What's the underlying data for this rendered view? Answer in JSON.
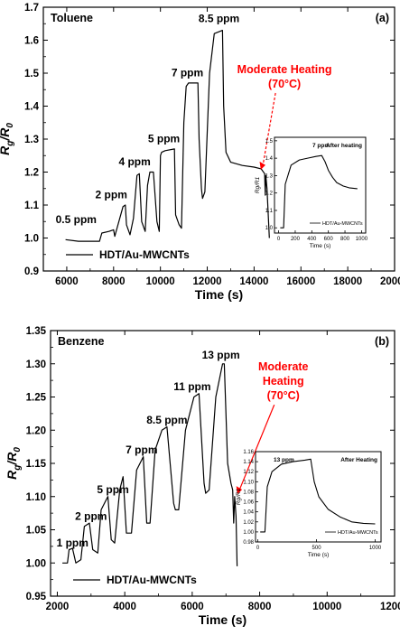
{
  "chart_data": [
    {
      "type": "line",
      "panel_tag": "(a)",
      "gas": "Toluene",
      "xlabel": "Time (s)",
      "ylabel": "Rg/R0",
      "xlim": [
        5000,
        20000
      ],
      "ylim": [
        0.9,
        1.7
      ],
      "xticks": [
        6000,
        8000,
        10000,
        12000,
        14000,
        16000,
        18000,
        20000
      ],
      "yticks": [
        0.9,
        1.0,
        1.1,
        1.2,
        1.3,
        1.4,
        1.5,
        1.6,
        1.7
      ],
      "legend": "HDT/Au-MWCNTs",
      "annotation": {
        "line1": "Moderate Heating",
        "line2": "(70°C)",
        "color": "#ff0000",
        "target": [
          14300,
          1.21
        ]
      },
      "concentration_labels": [
        {
          "text": "0.5 ppm",
          "x": 6400,
          "y": 1.045
        },
        {
          "text": "2 ppm",
          "x": 7900,
          "y": 1.12
        },
        {
          "text": "4 ppm",
          "x": 8900,
          "y": 1.22
        },
        {
          "text": "5 ppm",
          "x": 10150,
          "y": 1.29
        },
        {
          "text": "7 ppm",
          "x": 11150,
          "y": 1.49
        },
        {
          "text": "8.5 ppm",
          "x": 12500,
          "y": 1.655
        }
      ],
      "series": [
        {
          "x": [
            5950,
            6500,
            7000,
            7400,
            7500,
            7800,
            8000,
            8050,
            8400,
            8500,
            8550,
            8700,
            8850,
            9000,
            9100,
            9200,
            9350,
            9450,
            9550,
            9700,
            9850,
            9950,
            10000,
            10050,
            10200,
            10600,
            10650,
            10800,
            10900,
            11000,
            11100,
            11200,
            11600,
            11650,
            11750,
            11800,
            11900,
            12100,
            12300,
            12650,
            12700,
            12800,
            13000,
            13500,
            14000,
            14300,
            14450,
            14480,
            14500,
            14550,
            14650
          ],
          "y": [
            0.995,
            0.99,
            0.99,
            0.99,
            1.015,
            1.02,
            1.025,
            1.005,
            1.095,
            1.1,
            1.04,
            1.01,
            1.06,
            1.19,
            1.195,
            1.05,
            1.02,
            1.16,
            1.2,
            1.2,
            1.05,
            1.02,
            1.25,
            1.26,
            1.265,
            1.27,
            1.07,
            1.04,
            1.03,
            1.35,
            1.46,
            1.47,
            1.47,
            1.3,
            1.15,
            1.12,
            1.14,
            1.5,
            1.62,
            1.63,
            1.4,
            1.26,
            1.23,
            1.22,
            1.215,
            1.21,
            1.195,
            1.13,
            1.19,
            1.15,
            1.0
          ]
        }
      ],
      "inset": {
        "label": "7 ppm",
        "note": "After heating",
        "ylabel": "Rg/R1",
        "xlabel": "Time (s)",
        "legend": "HDT/Au-MWCNTs",
        "xlim": [
          -50,
          1050
        ],
        "ylim": [
          0.97,
          1.52
        ],
        "xticks": [
          0,
          200,
          400,
          600,
          800,
          1000
        ],
        "yticks": [
          1.0,
          1.1,
          1.2,
          1.3,
          1.4,
          1.5
        ],
        "x": [
          20,
          60,
          80,
          150,
          250,
          350,
          450,
          520,
          560,
          600,
          650,
          700,
          780,
          850,
          950
        ],
        "y": [
          1.0,
          1.0,
          1.25,
          1.36,
          1.39,
          1.4,
          1.41,
          1.415,
          1.38,
          1.33,
          1.29,
          1.26,
          1.24,
          1.23,
          1.225
        ]
      }
    },
    {
      "type": "line",
      "panel_tag": "(b)",
      "gas": "Benzene",
      "xlabel": "Time (s)",
      "ylabel": "Rg/R0",
      "xlim": [
        1800,
        12000
      ],
      "ylim": [
        0.95,
        1.35
      ],
      "xticks": [
        2000,
        4000,
        6000,
        8000,
        10000,
        12000
      ],
      "yticks": [
        0.95,
        1.0,
        1.05,
        1.1,
        1.15,
        1.2,
        1.25,
        1.3,
        1.35
      ],
      "legend": "HDT/Au-MWCNTs",
      "annotation": {
        "line1": "Moderate",
        "line2": "Heating",
        "line3": "(70°C)",
        "color": "#ff0000",
        "target": [
          7350,
          1.105
        ]
      },
      "concentration_labels": [
        {
          "text": "1 ppm",
          "x": 2450,
          "y": 1.025
        },
        {
          "text": "2 ppm",
          "x": 3000,
          "y": 1.065
        },
        {
          "text": "5 ppm",
          "x": 3650,
          "y": 1.105
        },
        {
          "text": "7 ppm",
          "x": 4500,
          "y": 1.165
        },
        {
          "text": "8.5 ppm",
          "x": 5250,
          "y": 1.21
        },
        {
          "text": "11 ppm",
          "x": 6000,
          "y": 1.26
        },
        {
          "text": "13 ppm",
          "x": 6850,
          "y": 1.308
        }
      ],
      "series": [
        {
          "x": [
            2150,
            2300,
            2350,
            2450,
            2550,
            2700,
            2800,
            2950,
            3050,
            3200,
            3300,
            3500,
            3600,
            3700,
            3850,
            3950,
            4050,
            4200,
            4350,
            4550,
            4650,
            4750,
            4900,
            5100,
            5250,
            5450,
            5500,
            5600,
            5800,
            6050,
            6200,
            6350,
            6400,
            6500,
            6700,
            6900,
            6950,
            7050,
            7150,
            7200,
            7230,
            7260,
            7300,
            7330
          ],
          "y": [
            1.0,
            1.0,
            1.02,
            1.022,
            1.0,
            1.005,
            1.055,
            1.06,
            1.02,
            1.015,
            1.08,
            1.1,
            1.035,
            1.03,
            1.11,
            1.13,
            1.045,
            1.045,
            1.14,
            1.16,
            1.06,
            1.06,
            1.17,
            1.2,
            1.205,
            1.09,
            1.08,
            1.08,
            1.2,
            1.25,
            1.255,
            1.12,
            1.105,
            1.11,
            1.25,
            1.3,
            1.3,
            1.15,
            1.12,
            1.11,
            1.06,
            1.1,
            1.07,
            0.995
          ]
        }
      ],
      "inset": {
        "label": "13 ppm",
        "note": "After Heating",
        "ylabel": "Rg/R1",
        "xlabel": "Time (s)",
        "legend": "HDT/Au-MWCNTs",
        "xlim": [
          -20,
          1050
        ],
        "ylim": [
          0.98,
          1.16
        ],
        "xticks": [
          0,
          500,
          1000
        ],
        "yticks": [
          0.98,
          1.0,
          1.02,
          1.04,
          1.06,
          1.08,
          1.1,
          1.12,
          1.14,
          1.16
        ],
        "x": [
          20,
          60,
          80,
          120,
          200,
          300,
          400,
          450,
          480,
          520,
          600,
          700,
          800,
          900,
          1000
        ],
        "y": [
          1.0,
          1.0,
          1.09,
          1.12,
          1.135,
          1.14,
          1.143,
          1.145,
          1.1,
          1.07,
          1.045,
          1.03,
          1.02,
          1.017,
          1.016
        ]
      }
    }
  ]
}
